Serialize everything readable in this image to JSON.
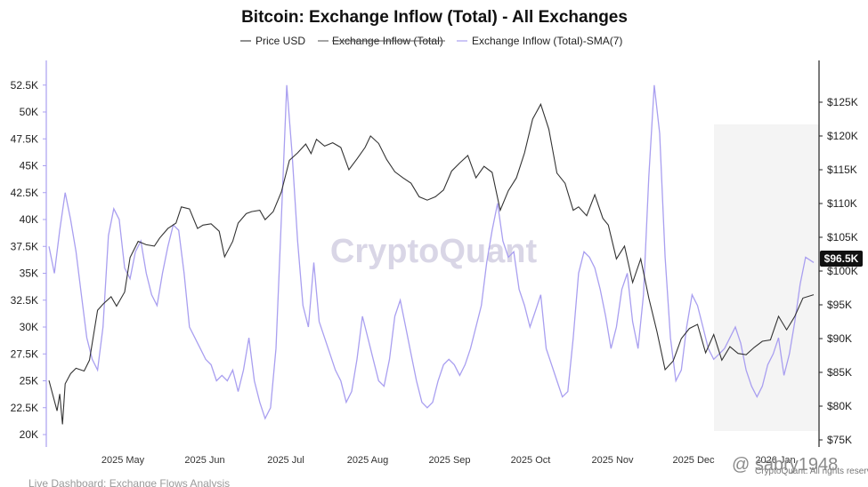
{
  "title": "Bitcoin: Exchange Inflow (Total) - All Exchanges",
  "legend": {
    "items": [
      {
        "label": "Price USD",
        "color": "#444444",
        "style": "solid"
      },
      {
        "label": "Exchange Inflow (Total)",
        "color": "#666666",
        "style": "strikethrough"
      },
      {
        "label": "Exchange Inflow (Total)-SMA(7)",
        "color": "#a99ff0",
        "style": "solid"
      }
    ]
  },
  "watermark": "CryptoQuant",
  "footer": "Live Dashboard: Exchange Flows Analysis",
  "overlay_text": {
    "small": "CryptoQuant. All rights reserved.",
    "user": "@ sabry1948"
  },
  "last_price_label": "$96.5K",
  "chart_data": {
    "type": "line",
    "title": "Bitcoin: Exchange Inflow (Total) - All Exchanges",
    "x_tick_labels": [
      "2025 May",
      "2025 Jun",
      "2025 Jul",
      "2025 Aug",
      "2025 Sep",
      "2025 Oct",
      "2025 Nov",
      "2025 Dec",
      "2026 Jan"
    ],
    "left_axis": {
      "ylim": [
        19000,
        54500
      ],
      "ticks": [
        20000,
        22500,
        25000,
        27500,
        30000,
        32500,
        35000,
        37500,
        40000,
        42500,
        45000,
        47500,
        50000,
        52500
      ],
      "tick_labels": [
        "20K",
        "22.5K",
        "25K",
        "27.5K",
        "30K",
        "32.5K",
        "35K",
        "37.5K",
        "40K",
        "42.5K",
        "45K",
        "47.5K",
        "50K",
        "52.5K"
      ]
    },
    "right_axis": {
      "ylim": [
        74800,
        128000
      ],
      "ticks": [
        75000,
        80000,
        85000,
        90000,
        95000,
        100000,
        105000,
        110000,
        115000,
        120000,
        125000
      ],
      "tick_labels": [
        "$75K",
        "$80K",
        "$85K",
        "$90K",
        "$95K",
        "$100K",
        "$105K",
        "$110K",
        "$115K",
        "$120K",
        "$125K"
      ]
    },
    "x_range": [
      0,
      283
    ],
    "grid": false,
    "legend_position": "top",
    "series": [
      {
        "name": "Price USD",
        "axis": "right",
        "color": "#333333",
        "x": [
          0,
          3,
          4,
          5,
          6,
          8,
          10,
          13,
          15,
          18,
          20,
          23,
          25,
          28,
          30,
          33,
          36,
          39,
          41,
          44,
          47,
          49,
          52,
          55,
          57,
          60,
          63,
          65,
          68,
          70,
          73,
          75,
          78,
          80,
          83,
          86,
          89,
          92,
          95,
          97,
          99,
          102,
          105,
          108,
          111,
          114,
          117,
          119,
          122,
          125,
          128,
          131,
          134,
          137,
          140,
          143,
          146,
          149,
          152,
          155,
          158,
          161,
          164,
          167,
          170,
          173,
          176,
          179,
          182,
          185,
          188,
          191,
          194,
          196,
          199,
          202,
          205,
          207,
          210,
          213,
          216,
          219,
          222,
          225,
          228,
          231,
          234,
          237,
          240,
          243,
          246,
          249,
          252,
          255,
          258,
          261,
          264,
          267,
          270,
          273,
          276,
          279,
          283
        ],
        "y": [
          83800,
          79300,
          81800,
          77300,
          83300,
          84800,
          85600,
          85200,
          86800,
          94200,
          95100,
          96200,
          94800,
          96900,
          102000,
          104400,
          103900,
          103700,
          104900,
          106300,
          107100,
          109500,
          109200,
          106300,
          106800,
          107000,
          105900,
          102100,
          104400,
          107100,
          108500,
          108800,
          109000,
          107600,
          108800,
          111700,
          116400,
          117500,
          118800,
          117400,
          119500,
          118500,
          119000,
          118300,
          115000,
          116600,
          118300,
          120000,
          118900,
          116500,
          114700,
          113800,
          113000,
          111000,
          110500,
          111000,
          112000,
          114800,
          116000,
          117100,
          113800,
          115500,
          114600,
          109000,
          111900,
          113800,
          117500,
          122500,
          124700,
          121000,
          114500,
          113000,
          109000,
          109500,
          108200,
          111300,
          107800,
          106800,
          101800,
          103700,
          98300,
          101800,
          96000,
          91000,
          85400,
          86700,
          90000,
          91500,
          92100,
          87900,
          90600,
          86800,
          88800,
          87800,
          87600,
          88700,
          89600,
          89800,
          93300,
          91300,
          93300,
          96000,
          96500
        ]
      },
      {
        "name": "Exchange Inflow (Total)-SMA(7)",
        "axis": "left",
        "color": "#a99ff0",
        "x": [
          0,
          2,
          4,
          6,
          8,
          10,
          12,
          14,
          16,
          18,
          20,
          22,
          24,
          26,
          28,
          30,
          32,
          34,
          36,
          38,
          40,
          42,
          44,
          46,
          48,
          50,
          52,
          54,
          56,
          58,
          60,
          62,
          64,
          66,
          68,
          70,
          72,
          74,
          76,
          78,
          80,
          82,
          84,
          86,
          88,
          90,
          92,
          94,
          96,
          98,
          100,
          102,
          104,
          106,
          108,
          110,
          112,
          114,
          116,
          118,
          120,
          122,
          124,
          126,
          128,
          130,
          132,
          134,
          136,
          138,
          140,
          142,
          144,
          146,
          148,
          150,
          152,
          154,
          156,
          158,
          160,
          162,
          164,
          166,
          168,
          170,
          172,
          174,
          176,
          178,
          180,
          182,
          184,
          186,
          188,
          190,
          192,
          194,
          196,
          198,
          200,
          202,
          204,
          206,
          208,
          210,
          212,
          214,
          216,
          218,
          220,
          222,
          224,
          226,
          228,
          230,
          232,
          234,
          236,
          238,
          240,
          242,
          244,
          246,
          248,
          250,
          252,
          254,
          256,
          258,
          260,
          262,
          264,
          266,
          268,
          270,
          272,
          274,
          276,
          278,
          280,
          283
        ],
        "y": [
          37500,
          35000,
          39000,
          42500,
          40000,
          37000,
          33000,
          29000,
          27000,
          26000,
          30000,
          38500,
          41000,
          40000,
          35500,
          34500,
          37000,
          38000,
          35000,
          33000,
          32000,
          35000,
          37500,
          39500,
          39000,
          35000,
          30000,
          29000,
          28000,
          27000,
          26500,
          25000,
          25500,
          25000,
          26000,
          24000,
          26000,
          29000,
          25000,
          23000,
          21500,
          22500,
          28000,
          40000,
          52500,
          46000,
          38000,
          32000,
          30000,
          36000,
          30500,
          29000,
          27500,
          26000,
          25000,
          23000,
          24000,
          27000,
          31000,
          29000,
          27000,
          25000,
          24500,
          27000,
          31000,
          32500,
          30000,
          27500,
          25000,
          23000,
          22500,
          23000,
          25000,
          26500,
          27000,
          26500,
          25500,
          26500,
          28000,
          30000,
          32000,
          36000,
          39000,
          41500,
          38000,
          36500,
          37000,
          33500,
          32000,
          30000,
          31500,
          33000,
          28000,
          26500,
          25000,
          23500,
          24000,
          29000,
          35000,
          37000,
          36500,
          35500,
          33500,
          31000,
          28000,
          30000,
          33500,
          35000,
          30500,
          28000,
          33000,
          44000,
          52500,
          48000,
          36500,
          29000,
          25000,
          26000,
          30000,
          33000,
          32000,
          30000,
          28000,
          27000,
          27500,
          28000,
          29000,
          30000,
          28500,
          26000,
          24500,
          23500,
          24500,
          26500,
          27500,
          29000,
          25500,
          27500,
          30500,
          34000,
          36500,
          36000
        ]
      }
    ]
  }
}
